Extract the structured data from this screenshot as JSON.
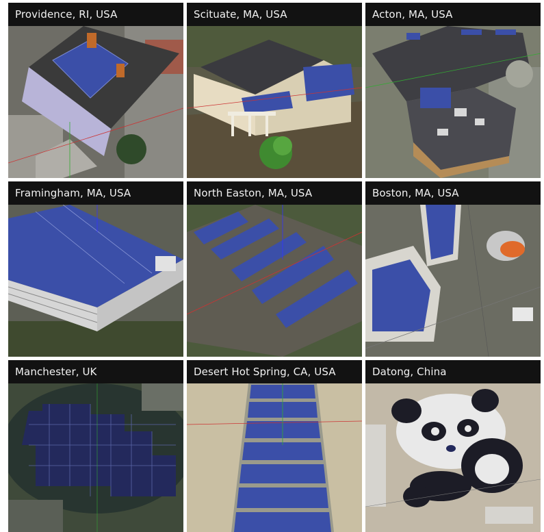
{
  "tiles": [
    {
      "label": "Providence, RI, USA"
    },
    {
      "label": "Scituate, MA, USA"
    },
    {
      "label": "Acton, MA, USA"
    },
    {
      "label": "Framingham, MA, USA"
    },
    {
      "label": "North Easton, MA, USA"
    },
    {
      "label": "Boston, MA, USA"
    },
    {
      "label": "Manchester, UK"
    },
    {
      "label": "Desert Hot Spring, CA, USA"
    },
    {
      "label": "Datong, China"
    }
  ],
  "colors": {
    "label_bg": "#121212",
    "label_text": "#f2f2f2",
    "panel_blue": "#3a4a9c",
    "panel_dark": "#1e2560",
    "roof_gray": "#444444",
    "grass": "#4b6b35",
    "desert": "#c9bfa3"
  }
}
